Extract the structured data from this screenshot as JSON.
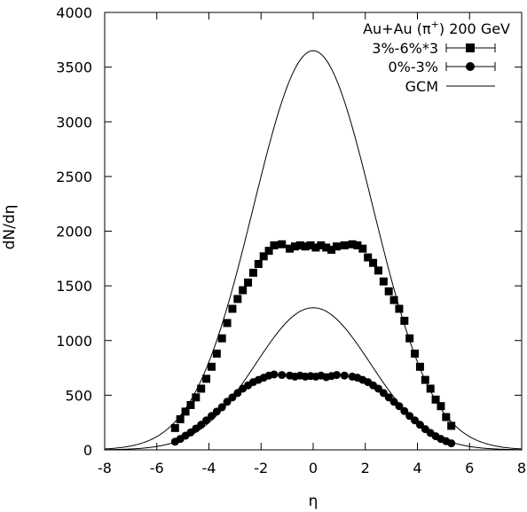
{
  "chart_data": {
    "type": "scatter",
    "xlabel": "η",
    "ylabel": "dN/dη",
    "xlim": [
      -8,
      8
    ],
    "ylim": [
      0,
      4000
    ],
    "xticks": [
      "-8",
      "-6",
      "-4",
      "-2",
      "0",
      "2",
      "4",
      "6",
      "8"
    ],
    "yticks": [
      "0",
      "500",
      "1000",
      "1500",
      "2000",
      "2500",
      "3000",
      "3500",
      "4000"
    ],
    "grid": false,
    "legend": {
      "position": "top-right",
      "title_prefix": "Au+Au (π",
      "title_sup": "+",
      "title_suffix": ") 200 GeV"
    },
    "series": [
      {
        "name": "3%-6%*3",
        "marker": "square",
        "x": [
          -5.3,
          -5.1,
          -4.9,
          -4.7,
          -4.5,
          -4.3,
          -4.1,
          -3.9,
          -3.7,
          -3.5,
          -3.3,
          -3.1,
          -2.9,
          -2.7,
          -2.5,
          -2.3,
          -2.1,
          -1.9,
          -1.7,
          -1.5,
          -1.2,
          -0.9,
          -0.7,
          -0.5,
          -0.3,
          -0.1,
          0.1,
          0.3,
          0.5,
          0.7,
          0.9,
          1.2,
          1.5,
          1.7,
          1.9,
          2.1,
          2.3,
          2.5,
          2.7,
          2.9,
          3.1,
          3.3,
          3.5,
          3.7,
          3.9,
          4.1,
          4.3,
          4.5,
          4.7,
          4.9,
          5.1,
          5.3
        ],
        "y": [
          200,
          280,
          350,
          410,
          480,
          560,
          650,
          760,
          880,
          1020,
          1160,
          1290,
          1380,
          1460,
          1530,
          1620,
          1700,
          1770,
          1820,
          1870,
          1880,
          1840,
          1860,
          1870,
          1860,
          1870,
          1850,
          1870,
          1850,
          1830,
          1860,
          1870,
          1880,
          1870,
          1840,
          1760,
          1710,
          1640,
          1540,
          1450,
          1370,
          1290,
          1180,
          1020,
          880,
          760,
          640,
          560,
          460,
          400,
          300,
          220
        ]
      },
      {
        "name": "0%-3%",
        "marker": "circle",
        "x": [
          -5.3,
          -5.1,
          -4.9,
          -4.7,
          -4.5,
          -4.3,
          -4.1,
          -3.9,
          -3.7,
          -3.5,
          -3.3,
          -3.1,
          -2.9,
          -2.7,
          -2.5,
          -2.3,
          -2.1,
          -1.9,
          -1.7,
          -1.5,
          -1.2,
          -0.9,
          -0.7,
          -0.5,
          -0.3,
          -0.1,
          0.1,
          0.3,
          0.5,
          0.7,
          0.9,
          1.2,
          1.5,
          1.7,
          1.9,
          2.1,
          2.3,
          2.5,
          2.7,
          2.9,
          3.1,
          3.3,
          3.5,
          3.7,
          3.9,
          4.1,
          4.3,
          4.5,
          4.7,
          4.9,
          5.1,
          5.3
        ],
        "y": [
          75,
          100,
          130,
          160,
          195,
          230,
          270,
          310,
          350,
          390,
          440,
          480,
          520,
          560,
          590,
          620,
          640,
          660,
          680,
          690,
          685,
          680,
          670,
          680,
          670,
          675,
          670,
          680,
          665,
          675,
          685,
          680,
          670,
          660,
          640,
          620,
          590,
          560,
          520,
          480,
          440,
          400,
          355,
          310,
          270,
          230,
          190,
          155,
          125,
          100,
          80,
          60
        ]
      }
    ],
    "curves": [
      {
        "name": "GCM",
        "peak": 3650,
        "sigma": 2.3
      },
      {
        "peak": 1300,
        "sigma": 2.2
      }
    ]
  }
}
